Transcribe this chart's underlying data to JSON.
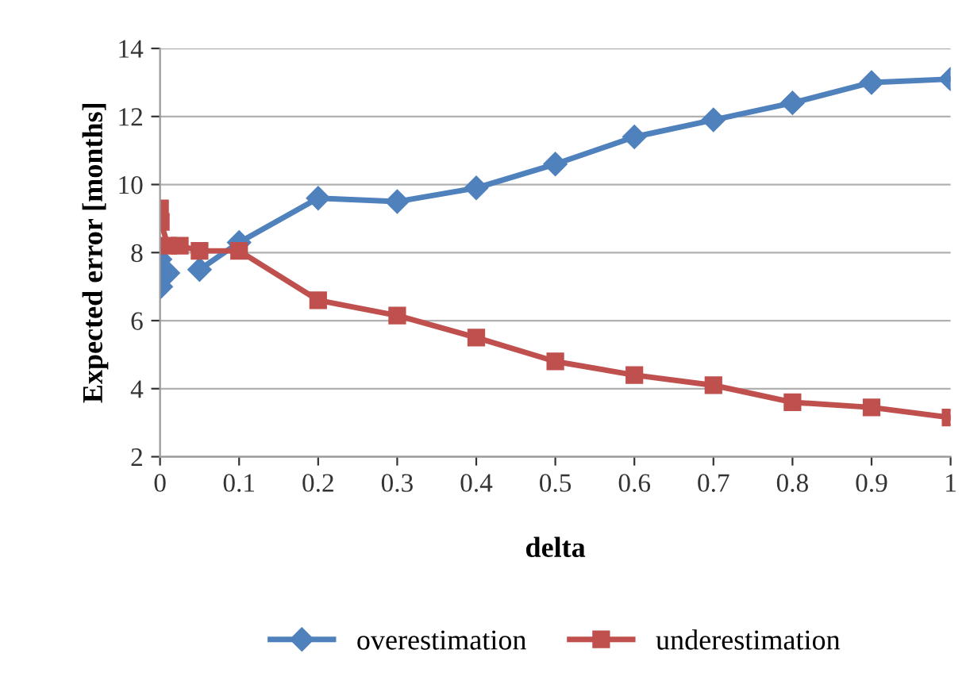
{
  "chart_data": {
    "type": "line",
    "xlabel": "delta",
    "ylabel": "Expected error [months]",
    "x": [
      0,
      0.001,
      0.01,
      0.025,
      0.05,
      0.1,
      0.2,
      0.3,
      0.4,
      0.5,
      0.6,
      0.7,
      0.8,
      0.9,
      1.0
    ],
    "series": [
      {
        "name": "overestimation",
        "color": "#4f81bd",
        "marker": "diamond",
        "values": [
          7.8,
          7.0,
          7.4,
          null,
          7.5,
          8.3,
          9.6,
          9.5,
          9.9,
          10.6,
          11.4,
          11.9,
          12.4,
          13.0,
          13.1
        ]
      },
      {
        "name": "underestimation",
        "color": "#c0504d",
        "marker": "square",
        "values": [
          9.3,
          8.9,
          8.2,
          8.2,
          8.05,
          8.05,
          6.6,
          6.15,
          5.5,
          4.8,
          4.4,
          4.1,
          3.6,
          3.45,
          3.15
        ]
      }
    ],
    "xlim": [
      0,
      1
    ],
    "xticks": [
      0,
      0.1,
      0.2,
      0.3,
      0.4,
      0.5,
      0.6,
      0.7,
      0.8,
      0.9,
      1
    ],
    "ylim": [
      2,
      14
    ],
    "yticks": [
      2,
      4,
      6,
      8,
      10,
      12,
      14
    ],
    "grid": "y",
    "legend": "bottom",
    "line_style": "solid"
  }
}
